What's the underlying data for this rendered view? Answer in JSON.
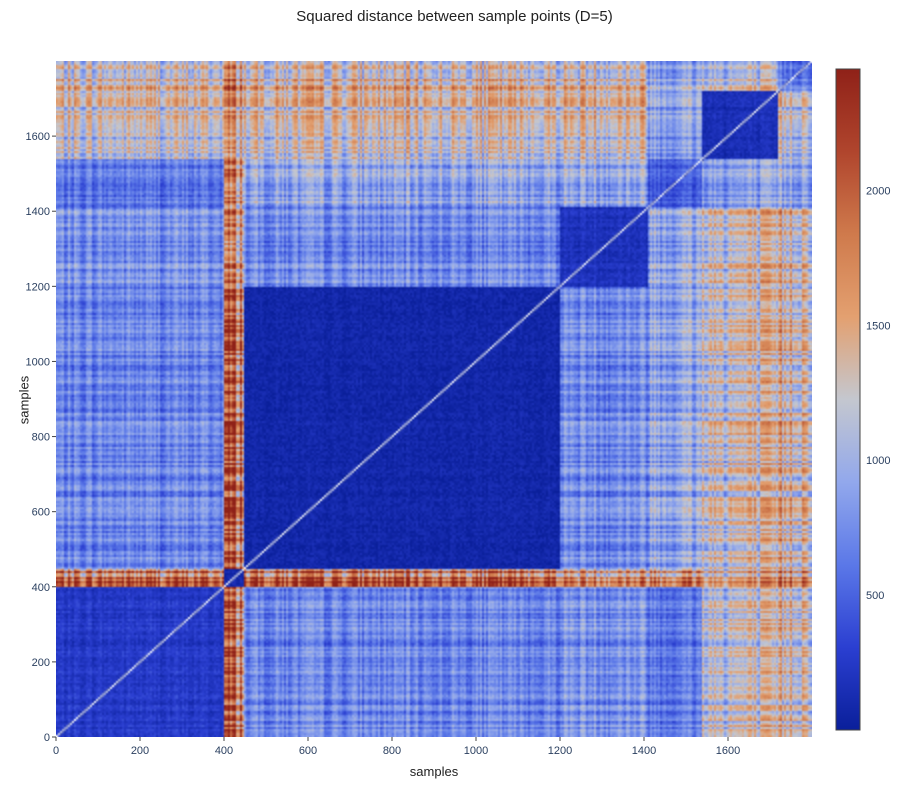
{
  "chart_data": {
    "type": "heatmap",
    "title": "Squared distance between sample points (D=5)",
    "xlabel": "samples",
    "ylabel": "samples",
    "xlim": [
      0,
      1800
    ],
    "ylim": [
      0,
      1800
    ],
    "x_ticks": [
      0,
      200,
      400,
      600,
      800,
      1000,
      1200,
      1400,
      1600
    ],
    "y_ticks": [
      0,
      200,
      400,
      600,
      800,
      1000,
      1200,
      1400,
      1600
    ],
    "colorscale": [
      "#0a1f9a",
      "#2b3fd1",
      "#5b78e8",
      "#92a8ec",
      "#c4c7cf",
      "#e3a070",
      "#cf7a4c",
      "#b0452d",
      "#8f2118"
    ],
    "colorbar": {
      "ticks": [
        500,
        1000,
        1500,
        2000
      ],
      "range": [
        0,
        2450
      ]
    },
    "grid": false,
    "clusters": [
      {
        "start": 0,
        "end": 400,
        "mean_intra": 250
      },
      {
        "start": 400,
        "end": 450,
        "mean_intra": 100
      },
      {
        "start": 450,
        "end": 1200,
        "mean_intra": 80
      },
      {
        "start": 1200,
        "end": 1410,
        "mean_intra": 200
      },
      {
        "start": 1410,
        "end": 1540,
        "mean_intra": 500
      },
      {
        "start": 1540,
        "end": 1720,
        "mean_intra": 150
      },
      {
        "start": 1720,
        "end": 1800,
        "mean_intra": 700
      }
    ],
    "mean_inter": [
      [
        250,
        1900,
        700,
        800,
        650,
        1200,
        1350
      ],
      [
        1900,
        100,
        1950,
        1700,
        1750,
        1500,
        1800
      ],
      [
        700,
        1950,
        80,
        750,
        950,
        1250,
        1400
      ],
      [
        800,
        1700,
        750,
        200,
        1000,
        1300,
        1400
      ],
      [
        650,
        1750,
        950,
        1000,
        500,
        900,
        1000
      ],
      [
        1200,
        1500,
        1250,
        1300,
        900,
        150,
        1200
      ],
      [
        1350,
        1800,
        1400,
        1400,
        1000,
        1200,
        700
      ]
    ]
  }
}
